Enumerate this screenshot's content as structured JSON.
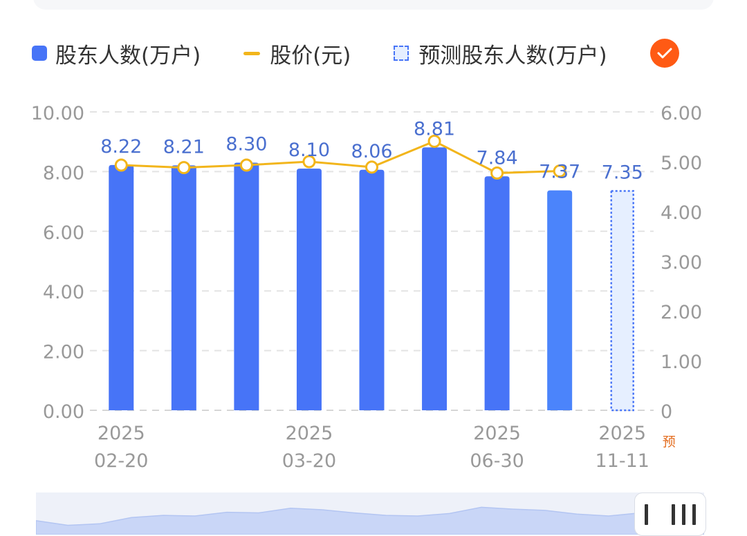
{
  "legend": {
    "bar_label": "股东人数(万户)",
    "line_label": "股价(元)",
    "forecast_label": "预测股东人数(万户)"
  },
  "chart_data": {
    "type": "bar",
    "categories": [
      "2025-02-20",
      "",
      "",
      "2025-03-20",
      "",
      "",
      "2025-06-30",
      "",
      "2025-11-11"
    ],
    "x_tick_labels": [
      {
        "index": 0,
        "year": "2025",
        "date": "02-20"
      },
      {
        "index": 3,
        "year": "2025",
        "date": "03-20"
      },
      {
        "index": 6,
        "year": "2025",
        "date": "06-30"
      },
      {
        "index": 8,
        "year": "2025",
        "date": "11-11",
        "tag": "预"
      }
    ],
    "series": [
      {
        "name": "股东人数(万户)",
        "type": "bar",
        "axis": "left",
        "values": [
          8.22,
          8.21,
          8.3,
          8.1,
          8.06,
          8.81,
          7.84,
          7.37,
          null
        ],
        "labels": [
          "8.22",
          "8.21",
          "8.30",
          "8.10",
          "8.06",
          "8.81",
          "7.84",
          "7.37",
          ""
        ]
      },
      {
        "name": "预测股东人数(万户)",
        "type": "bar-forecast",
        "axis": "left",
        "values": [
          null,
          null,
          null,
          null,
          null,
          null,
          null,
          null,
          7.35
        ],
        "labels": [
          "",
          "",
          "",
          "",
          "",
          "",
          "",
          "",
          "7.35"
        ]
      },
      {
        "name": "股价(元)",
        "type": "line",
        "axis": "right",
        "values": [
          4.93,
          4.88,
          4.93,
          5.0,
          4.89,
          5.41,
          4.77,
          4.81,
          null
        ]
      }
    ],
    "y_left": {
      "ylim": [
        0,
        10
      ],
      "ticks": [
        "0.00",
        "2.00",
        "4.00",
        "6.00",
        "8.00",
        "10.00"
      ]
    },
    "y_right": {
      "ylim": [
        0,
        6
      ],
      "ticks": [
        "0",
        "1.00",
        "2.00",
        "3.00",
        "4.00",
        "5.00",
        "6.00"
      ]
    },
    "grid": true,
    "legend_position": "top",
    "colors": {
      "bar": "#4774f7",
      "bar_last": "#4b84fb",
      "line": "#f2b51b",
      "forecast_fill": "#e6efff",
      "forecast_border": "#4774f7",
      "label": "#4a6fcf",
      "axis_text": "#999999",
      "tag": "#e36b1c"
    }
  },
  "minimap": {
    "values": [
      0.45,
      0.3,
      0.35,
      0.55,
      0.62,
      0.6,
      0.72,
      0.7,
      0.85,
      0.8,
      0.7,
      0.62,
      0.6,
      0.68,
      0.88,
      0.82,
      0.78,
      0.66,
      0.6,
      0.7,
      0.72,
      0.74
    ]
  }
}
